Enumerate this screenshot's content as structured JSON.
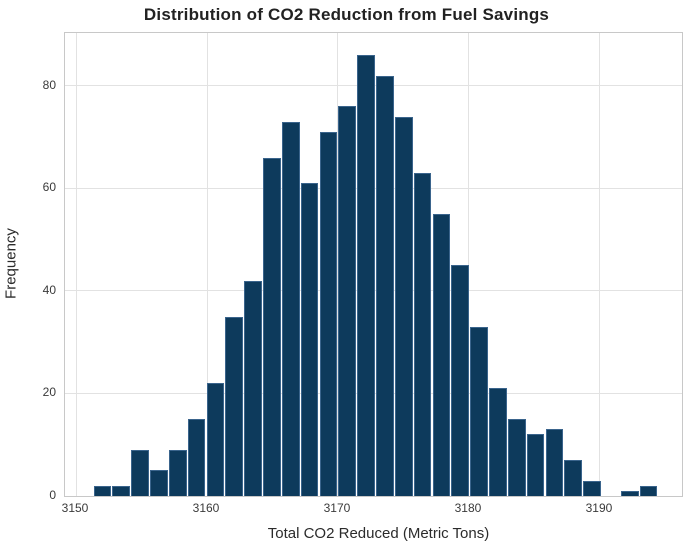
{
  "chart_data": {
    "type": "bar",
    "subtype": "histogram",
    "title": "Distribution of CO2 Reduction from Fuel Savings",
    "xlabel": "Total CO2 Reduced (Metric Tons)",
    "ylabel": "Frequency",
    "bins": {
      "start": 3151.3,
      "width": 1.4376,
      "count": 30
    },
    "counts": [
      2,
      2,
      9,
      5,
      9,
      15,
      22,
      35,
      42,
      66,
      73,
      61,
      71,
      76,
      86,
      82,
      74,
      63,
      55,
      45,
      33,
      21,
      15,
      12,
      13,
      7,
      3,
      0,
      1,
      2
    ],
    "xticks": [
      3150,
      3160,
      3170,
      3180,
      3190
    ],
    "yticks": [
      0,
      20,
      40,
      60,
      80
    ],
    "xlim": [
      3149.16,
      3196.26
    ],
    "ylim": [
      0,
      90.3
    ],
    "grid": true,
    "legend": false,
    "styles": {
      "bar_fill": "#0d3a5c",
      "bar_edge": "#3a648c",
      "grid_color": "#e2e2e2",
      "spine_color": "#c8c8c8",
      "title_color": "#222222",
      "label_color": "#2b2b2b",
      "tick_color": "#3a3a3a"
    }
  }
}
